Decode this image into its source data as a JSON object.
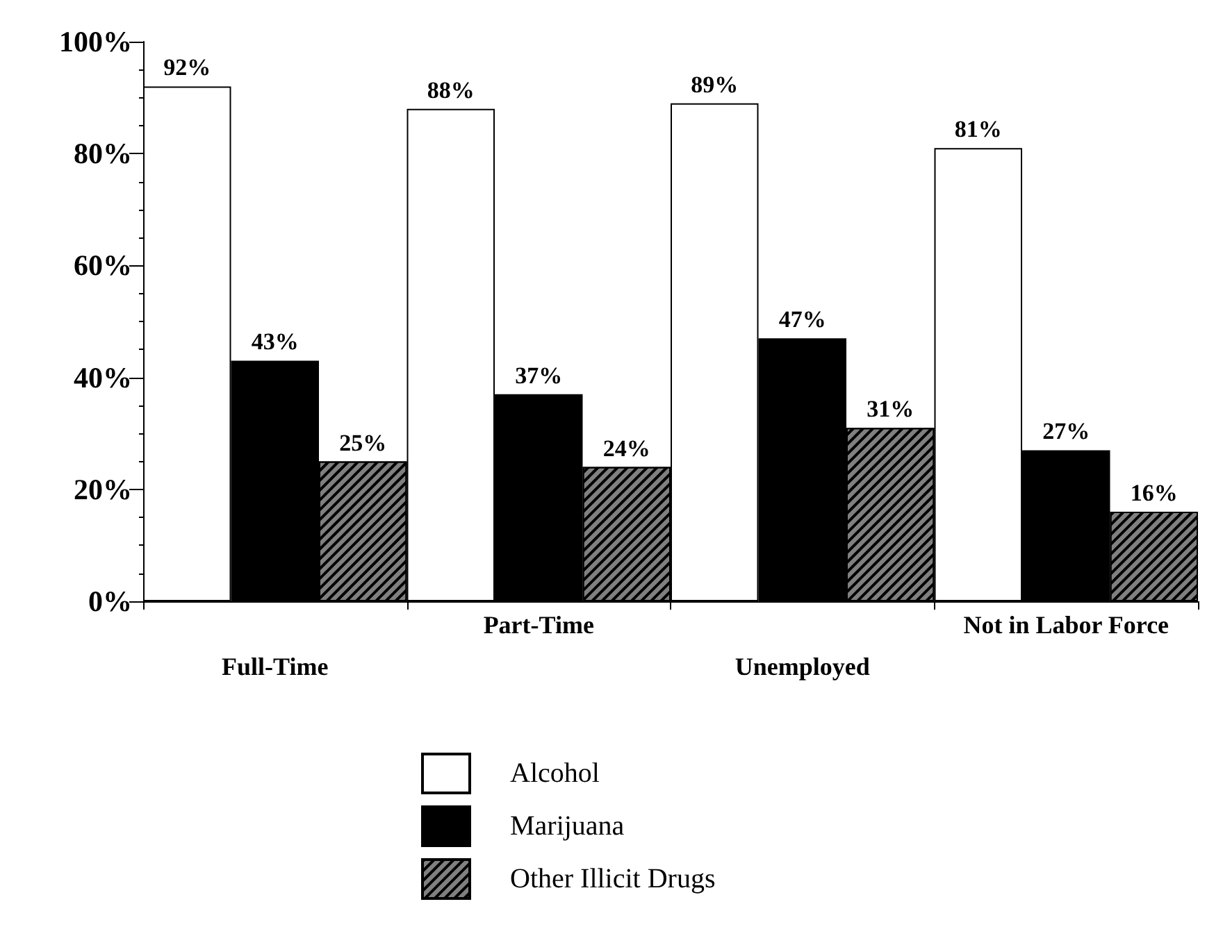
{
  "chart_data": {
    "type": "bar",
    "categories": [
      "Full-Time",
      "Part-Time",
      "Unemployed",
      "Not in Labor Force"
    ],
    "series": [
      {
        "name": "Alcohol",
        "color": "#ffffff",
        "values": [
          92,
          88,
          89,
          81
        ],
        "value_labels": [
          "92%",
          "88%",
          "89%",
          "81%"
        ]
      },
      {
        "name": "Marijuana",
        "color": "#000000",
        "values": [
          43,
          37,
          47,
          27
        ],
        "value_labels": [
          "43%",
          "37%",
          "47%",
          "27%"
        ]
      },
      {
        "name": "Other Illicit Drugs",
        "color": "#808080",
        "values": [
          25,
          24,
          31,
          16
        ],
        "value_labels": [
          "25%",
          "24%",
          "31%",
          "16%"
        ]
      }
    ],
    "ylim": [
      0,
      100
    ],
    "yticks": [
      {
        "value": 0,
        "label": "0%"
      },
      {
        "value": 20,
        "label": "20%"
      },
      {
        "value": 40,
        "label": "40%"
      },
      {
        "value": 60,
        "label": "60%"
      },
      {
        "value": 80,
        "label": "80%"
      },
      {
        "value": 100,
        "label": "100%"
      }
    ],
    "grid": false,
    "legend": "bottom"
  }
}
